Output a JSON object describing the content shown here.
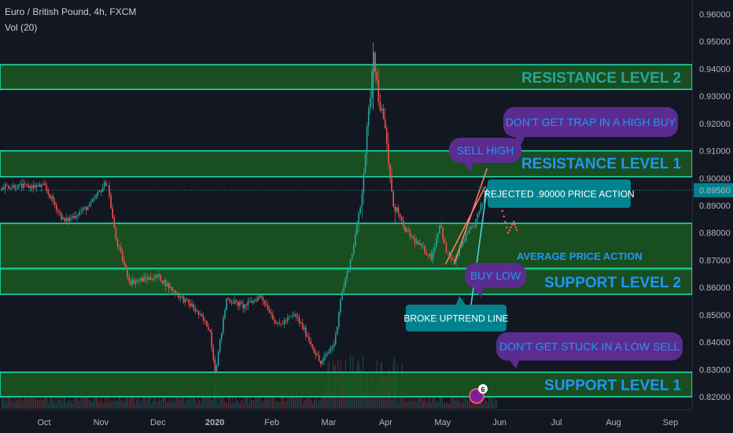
{
  "header": {
    "symbol_title": "Euro / British Pound, 4h, FXCM",
    "volume_label": "Vol (20)"
  },
  "chart_data": {
    "type": "candlestick",
    "symbol": "Euro / British Pound",
    "timeframe": "4h",
    "source": "FXCM",
    "y_axis": {
      "ticks": [
        "0.96000",
        "0.95000",
        "0.94000",
        "0.93000",
        "0.92000",
        "0.91000",
        "0.90000",
        "0.89000",
        "0.88000",
        "0.87000",
        "0.86000",
        "0.85000",
        "0.84000",
        "0.83000",
        "0.82000"
      ],
      "range": [
        0.8175,
        0.9645
      ],
      "current_price": "0.89560"
    },
    "x_axis": {
      "ticks": [
        "Oct",
        "Nov",
        "Dec",
        "2020",
        "Feb",
        "Mar",
        "Apr",
        "May",
        "Jun",
        "Jul",
        "Aug",
        "Sep"
      ]
    },
    "price_path": [
      {
        "t": 0,
        "p": 0.897
      },
      {
        "t": 0.35,
        "p": 0.884
      },
      {
        "t": 0.8,
        "p": 0.89
      },
      {
        "t": 1.1,
        "p": 0.899
      },
      {
        "t": 1.25,
        "p": 0.878
      },
      {
        "t": 1.5,
        "p": 0.862
      },
      {
        "t": 2.0,
        "p": 0.864
      },
      {
        "t": 2.3,
        "p": 0.858
      },
      {
        "t": 2.6,
        "p": 0.853
      },
      {
        "t": 2.9,
        "p": 0.845
      },
      {
        "t": 3.0,
        "p": 0.829
      },
      {
        "t": 3.2,
        "p": 0.856
      },
      {
        "t": 3.5,
        "p": 0.853
      },
      {
        "t": 3.8,
        "p": 0.857
      },
      {
        "t": 4.1,
        "p": 0.846
      },
      {
        "t": 4.4,
        "p": 0.85
      },
      {
        "t": 4.6,
        "p": 0.843
      },
      {
        "t": 4.85,
        "p": 0.832
      },
      {
        "t": 5.1,
        "p": 0.84
      },
      {
        "t": 5.2,
        "p": 0.856
      },
      {
        "t": 5.4,
        "p": 0.872
      },
      {
        "t": 5.55,
        "p": 0.89
      },
      {
        "t": 5.7,
        "p": 0.925
      },
      {
        "t": 5.78,
        "p": 0.948
      },
      {
        "t": 5.85,
        "p": 0.932
      },
      {
        "t": 6.0,
        "p": 0.915
      },
      {
        "t": 6.1,
        "p": 0.893
      },
      {
        "t": 6.3,
        "p": 0.882
      },
      {
        "t": 6.55,
        "p": 0.876
      },
      {
        "t": 6.8,
        "p": 0.871
      },
      {
        "t": 6.95,
        "p": 0.884
      },
      {
        "t": 7.05,
        "p": 0.873
      },
      {
        "t": 7.2,
        "p": 0.869
      },
      {
        "t": 7.35,
        "p": 0.877
      },
      {
        "t": 7.55,
        "p": 0.883
      },
      {
        "t": 7.8,
        "p": 0.897
      },
      {
        "t": 7.92,
        "p": 0.8956
      }
    ],
    "projection": [
      {
        "t": 7.92,
        "p": 0.8956
      },
      {
        "t": 8.05,
        "p": 0.888
      },
      {
        "t": 8.15,
        "p": 0.88
      },
      {
        "t": 8.25,
        "p": 0.884
      },
      {
        "t": 8.32,
        "p": 0.88
      }
    ],
    "zones": [
      {
        "name": "RESISTANCE LEVEL 2",
        "from": 0.9325,
        "to": 0.9415
      },
      {
        "name": "RESISTANCE LEVEL 1",
        "from": 0.9005,
        "to": 0.91
      },
      {
        "name": "",
        "from": 0.8665,
        "to": 0.8835
      },
      {
        "name": "SUPPORT LEVEL 2",
        "from": 0.8575,
        "to": 0.867
      },
      {
        "name": "SUPPORT LEVEL 1",
        "from": 0.82,
        "to": 0.829
      }
    ],
    "zone_labels": [
      {
        "text": "RESISTANCE LEVEL 2",
        "price": 0.937,
        "color": "#26a69a"
      },
      {
        "text": "RESISTANCE LEVEL 1",
        "price": 0.9055,
        "color": "#2196f3"
      },
      {
        "text": "SUPPORT LEVEL 2",
        "price": 0.862,
        "color": "#2196f3"
      },
      {
        "text": "SUPPORT LEVEL 1",
        "price": 0.8245,
        "color": "#2196f3"
      }
    ],
    "annotations": [
      {
        "text": "DON'T GET TRAP IN A HIGH BUY",
        "style": "purple"
      },
      {
        "text": "SELL HIGH",
        "style": "purple"
      },
      {
        "text": "REJECTED .90000 PRICE ACTION",
        "style": "teal"
      },
      {
        "text": "AVERAGE PRICE ACTION",
        "style": "plain"
      },
      {
        "text": "BUY LOW",
        "style": "purple"
      },
      {
        "text": "BROKE UPTREND LINE",
        "style": "teal"
      },
      {
        "text": "DON'T GET STUCK IN A LOW SELL",
        "style": "purple"
      }
    ],
    "event_badge": "6",
    "colors": {
      "background": "#131722",
      "up": "#26a69a",
      "down": "#ef5350",
      "zone_fill": "#1b5e20",
      "zone_border": "#1de9b6",
      "callout_purple": "#5b2c8f",
      "callout_teal": "#00838f",
      "label_blue": "#2196f3",
      "current_price_box": "#00838f",
      "trendline": "#ff7b6b",
      "uptrend_line": "#4dd0e1"
    },
    "grid": false
  }
}
